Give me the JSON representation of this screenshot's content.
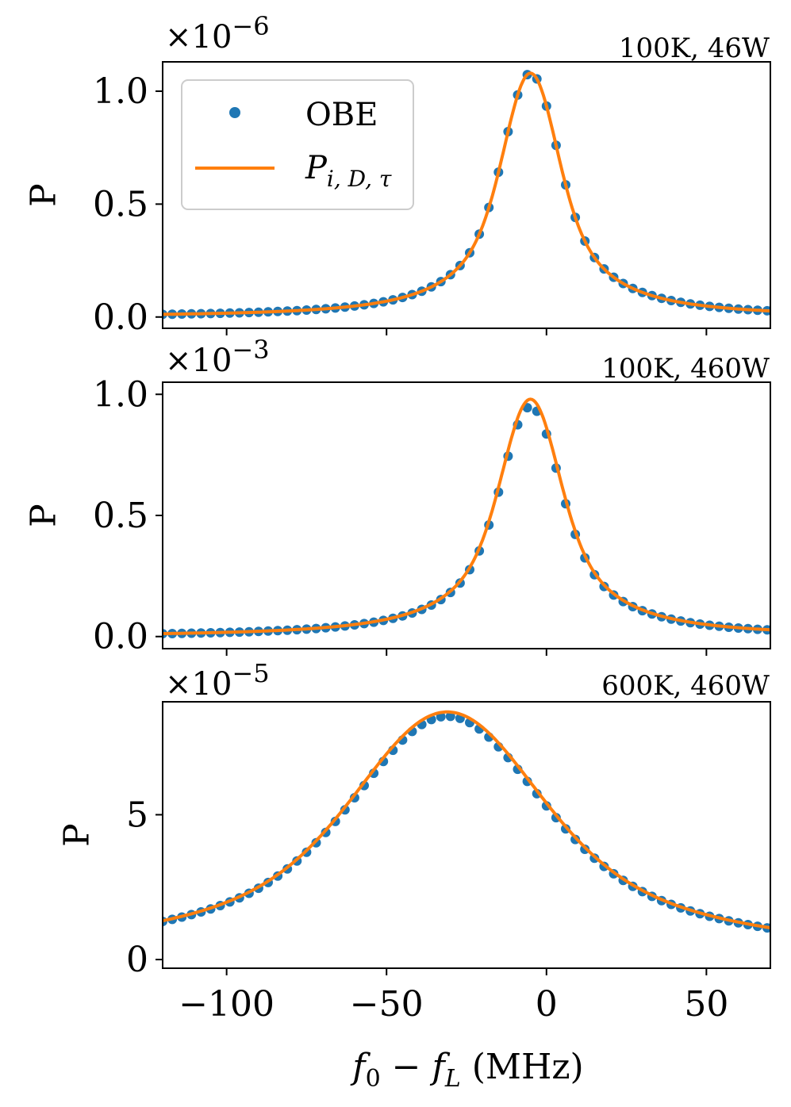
{
  "chart_data": [
    {
      "type": "line",
      "condition_label": "100K, 46W",
      "multiplier_base": "×10",
      "multiplier_exp": "−6",
      "ylabel": "P",
      "xlim": [
        -120,
        70
      ],
      "ylim": [
        -0.05,
        1.13
      ],
      "xticks": [
        -100,
        -50,
        0,
        50
      ],
      "yticks": [
        0.0,
        0.5,
        1.0
      ],
      "ytick_labels": [
        "0.0",
        "0.5",
        "1.0"
      ],
      "legend": {
        "position": "top-left",
        "entries": [
          "OBE",
          "P_{i,D,τ}"
        ]
      },
      "series": [
        {
          "name": "OBE",
          "kind": "markers",
          "color": "#1f77b4",
          "peak_x": -5,
          "peak_y": 1.08,
          "hwhm": 15.0,
          "gauss_sigma": 7.5,
          "step": 3
        },
        {
          "name": "P_{i,D,τ}",
          "kind": "line",
          "color": "#ff7f0e",
          "peak_x": -5,
          "peak_y": 1.08,
          "hwhm": 15.0,
          "gauss_sigma": 7.5
        }
      ]
    },
    {
      "type": "line",
      "condition_label": "100K, 460W",
      "multiplier_base": "×10",
      "multiplier_exp": "−3",
      "ylabel": "P",
      "xlim": [
        -120,
        70
      ],
      "ylim": [
        -0.05,
        1.05
      ],
      "xticks": [
        -100,
        -50,
        0,
        50
      ],
      "yticks": [
        0.0,
        0.5,
        1.0
      ],
      "ytick_labels": [
        "0.0",
        "0.5",
        "1.0"
      ],
      "series": [
        {
          "name": "OBE",
          "kind": "markers",
          "color": "#1f77b4",
          "peak_x": -5,
          "peak_y": 0.95,
          "hwhm": 16.0,
          "gauss_sigma": 8.0,
          "step": 3
        },
        {
          "name": "P_{i,D,τ}",
          "kind": "line",
          "color": "#ff7f0e",
          "peak_x": -5,
          "peak_y": 0.98,
          "hwhm": 16.0,
          "gauss_sigma": 8.0
        }
      ]
    },
    {
      "type": "line",
      "condition_label": "600K, 460W",
      "multiplier_base": "×10",
      "multiplier_exp": "−5",
      "ylabel": "P",
      "xlabel_main": "f",
      "xlabel_sub0": "0",
      "xlabel_minus": " − ",
      "xlabel_f2": "f",
      "xlabel_sub1": "L",
      "xlabel_unit": " (MHz)",
      "xlim": [
        -120,
        70
      ],
      "ylim": [
        -0.3,
        8.9
      ],
      "xticks": [
        -100,
        -50,
        0,
        50
      ],
      "xtick_labels": [
        "−100",
        "−50",
        "0",
        "50"
      ],
      "yticks": [
        0,
        5
      ],
      "ytick_labels": [
        "0",
        "5"
      ],
      "series": [
        {
          "name": "OBE",
          "kind": "markers",
          "color": "#1f77b4",
          "peak_x": -31,
          "peak_y": 8.4,
          "hwhm": 50.0,
          "gauss_sigma": 25.0,
          "step": 3
        },
        {
          "name": "P_{i,D,τ}",
          "kind": "line",
          "color": "#ff7f0e",
          "peak_x": -31,
          "peak_y": 8.55,
          "hwhm": 50.0,
          "gauss_sigma": 25.0
        }
      ]
    }
  ],
  "legend_labels": {
    "obe": "OBE",
    "fit_main": "P",
    "fit_sub": "i, D, τ"
  }
}
